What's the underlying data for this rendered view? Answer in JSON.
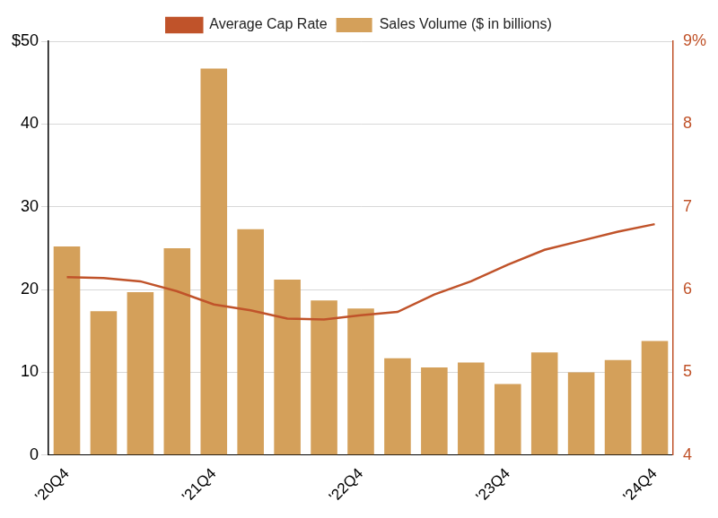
{
  "chart_data": {
    "type": "bar",
    "categories": [
      "'20Q4",
      null,
      null,
      null,
      "'21Q4",
      null,
      null,
      null,
      "'22Q4",
      null,
      null,
      null,
      "'23Q4",
      null,
      null,
      null,
      "'24Q4"
    ],
    "series": [
      {
        "name": "Sales Volume ($ in billions)",
        "type": "bar",
        "color": "#d4a05a",
        "values": [
          25.2,
          17.4,
          19.7,
          25.0,
          46.7,
          27.3,
          21.2,
          18.7,
          17.7,
          11.7,
          10.6,
          11.2,
          8.6,
          12.4,
          10.0,
          11.5,
          13.8
        ]
      },
      {
        "name": "Average Cap Rate",
        "type": "line",
        "color": "#c0532a",
        "axis": "y2",
        "marker": "none",
        "values": [
          6.15,
          6.14,
          6.1,
          5.98,
          5.82,
          5.75,
          5.65,
          5.64,
          5.69,
          5.73,
          5.94,
          6.1,
          6.3,
          6.48,
          6.59,
          6.7,
          6.79
        ]
      }
    ],
    "ylim": [
      0,
      50
    ],
    "yticks": [
      0,
      10,
      20,
      30,
      40,
      {
        "value": 50,
        "label": "$50"
      }
    ],
    "y2lim": [
      4,
      9
    ],
    "y2ticks": [
      4,
      5,
      6,
      7,
      8,
      {
        "value": 9,
        "label": "9%"
      }
    ],
    "grid": true,
    "legend": "top"
  }
}
